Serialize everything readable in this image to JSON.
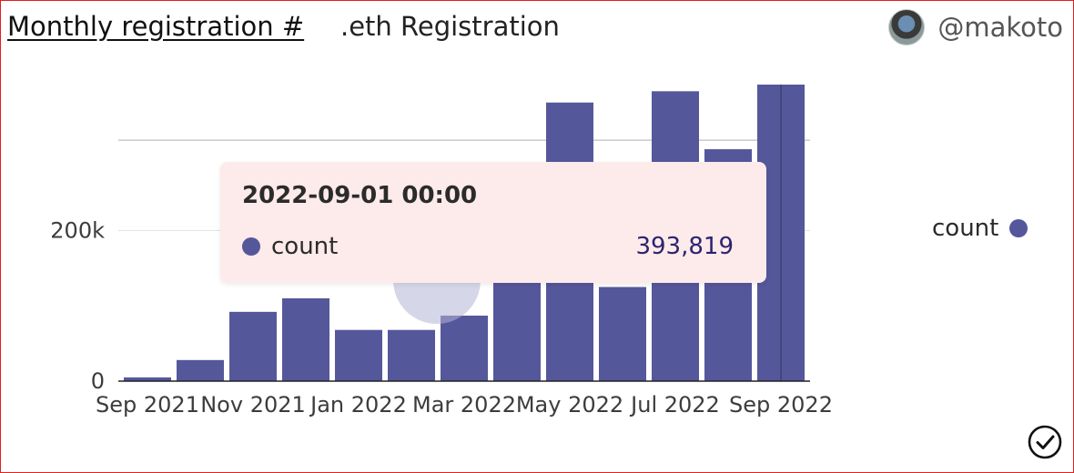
{
  "header": {
    "title": "Monthly registration #",
    "subtitle": ".eth Registration",
    "author": "@makoto"
  },
  "colors": {
    "bar": "#55579b",
    "frame": "#e02020",
    "tooltip_bg": "#fdeaea"
  },
  "chart_data": {
    "type": "bar",
    "categories": [
      "2021-09",
      "2021-10",
      "2021-11",
      "2021-12",
      "2022-01",
      "2022-02",
      "2022-03",
      "2022-04",
      "2022-05",
      "2022-06",
      "2022-07",
      "2022-08",
      "2022-09"
    ],
    "x_tick_labels": [
      "Sep 2021",
      "Nov 2021",
      "Jan 2022",
      "Mar 2022",
      "May 2022",
      "Jul 2022",
      "Sep 2022"
    ],
    "series": [
      {
        "name": "count",
        "values": [
          5000,
          28000,
          92000,
          110000,
          68000,
          68000,
          87000,
          150000,
          370000,
          125000,
          385000,
          308000,
          393819
        ]
      }
    ],
    "y_ticks": [
      0,
      200000
    ],
    "y_tick_labels": [
      "0",
      "200k"
    ],
    "ylim": [
      0,
      393819
    ],
    "gridlines_y": [
      200000,
      320000
    ],
    "grid": true,
    "legend": "right",
    "xlabel": "",
    "ylabel": ""
  },
  "tooltip": {
    "date": "2022-09-01 00:00",
    "series_label": "count",
    "value": "393,819"
  },
  "legend": {
    "label": "count"
  },
  "icons": {
    "confirm": "check-circle-icon"
  }
}
